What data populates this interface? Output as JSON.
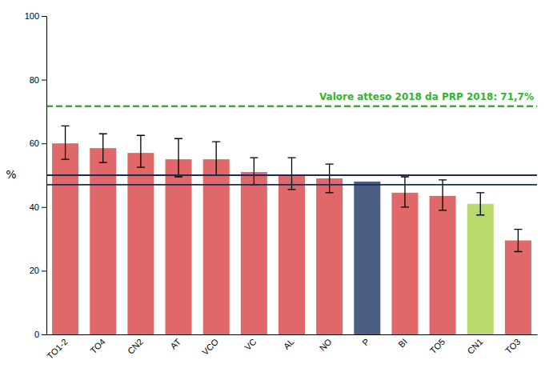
{
  "chart_data": {
    "type": "bar",
    "categories": [
      "TO1-2",
      "TO4",
      "CN2",
      "AT",
      "VCO",
      "VC",
      "AL",
      "NO",
      "P",
      "BI",
      "TO5",
      "CN1",
      "TO3"
    ],
    "values": [
      60.0,
      58.5,
      57.0,
      55.0,
      55.0,
      51.0,
      50.0,
      49.0,
      48.0,
      44.5,
      43.5,
      41.0,
      29.5
    ],
    "error_upper": [
      5.5,
      4.5,
      5.5,
      6.5,
      5.5,
      4.5,
      5.5,
      4.5,
      0.0,
      5.0,
      5.0,
      3.5,
      3.5
    ],
    "error_lower": [
      5.0,
      4.5,
      4.5,
      5.5,
      5.0,
      4.0,
      4.5,
      4.5,
      0.0,
      4.5,
      4.5,
      3.5,
      3.5
    ],
    "colors": [
      "#e06868",
      "#e06868",
      "#e06868",
      "#e06868",
      "#e06868",
      "#e06868",
      "#e06868",
      "#e06868",
      "#4a5f82",
      "#e06868",
      "#e06868",
      "#b8d96b",
      "#e06868"
    ],
    "reference_lines": [
      {
        "value": 50.0,
        "color": "#1a2a5a"
      },
      {
        "value": 47.0,
        "color": "#1a2a5a"
      },
      {
        "value": 71.7,
        "color": "#2db52d",
        "line_style": "dashed",
        "label": "Valore atteso 2018 da PRP 2018: 71,7%"
      }
    ],
    "ylabel": "%",
    "ylim": [
      0,
      100
    ],
    "yticks": [
      0,
      20,
      40,
      60,
      80,
      100
    ],
    "grid": false
  }
}
